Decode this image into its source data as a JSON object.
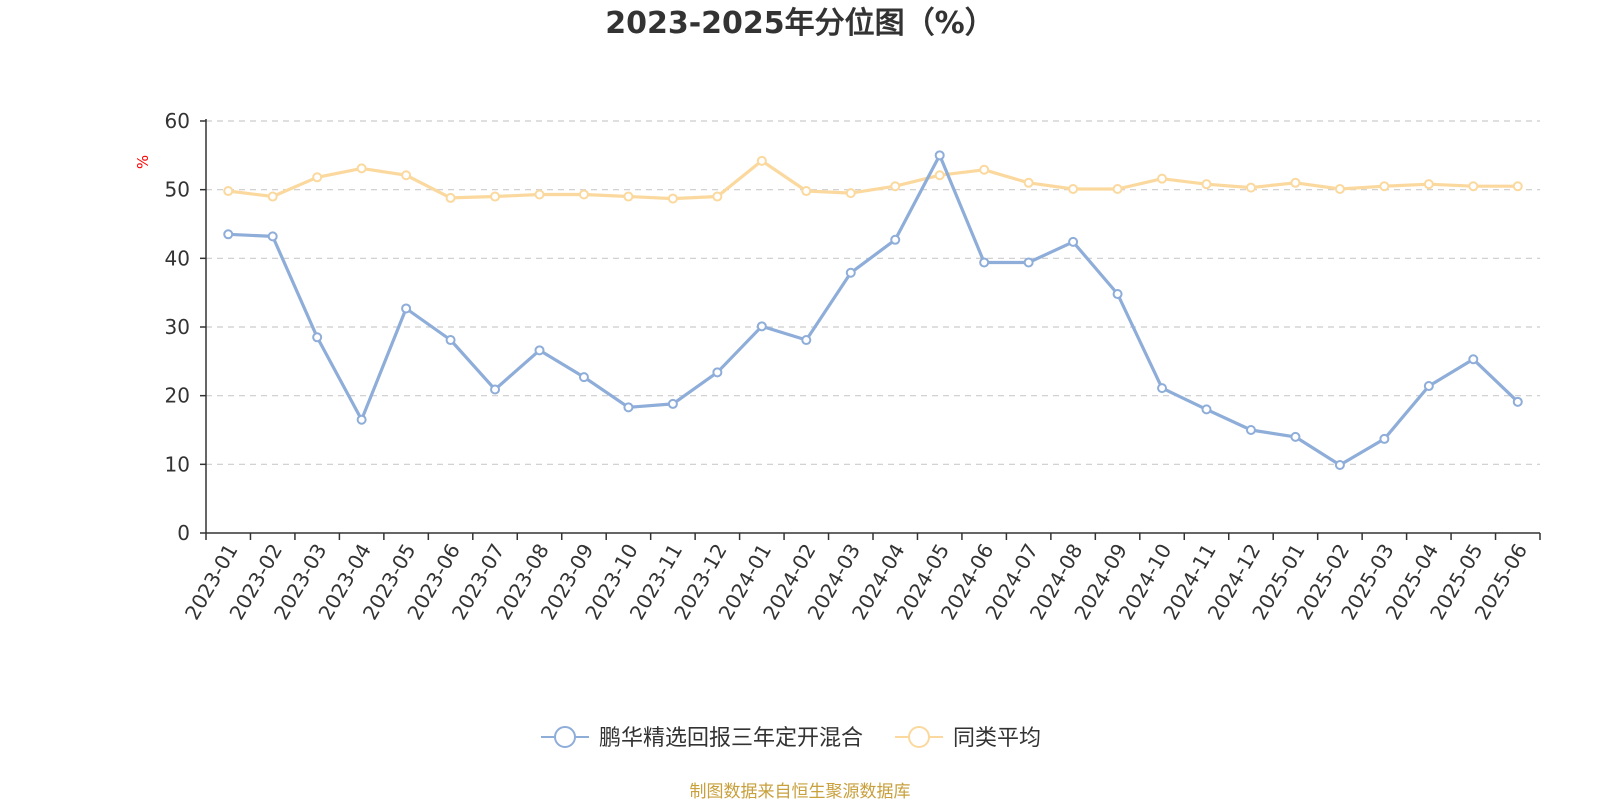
{
  "chart_data": {
    "type": "line",
    "title": "2023-2025年分位图（%）",
    "ylabel": "%",
    "ylim": [
      0,
      60
    ],
    "yticks": [
      0,
      10,
      20,
      30,
      40,
      50,
      60
    ],
    "grid": true,
    "legend_position": "bottom-center",
    "categories": [
      "2023-01",
      "2023-02",
      "2023-03",
      "2023-04",
      "2023-05",
      "2023-06",
      "2023-07",
      "2023-08",
      "2023-09",
      "2023-10",
      "2023-11",
      "2023-12",
      "2024-01",
      "2024-02",
      "2024-03",
      "2024-04",
      "2024-05",
      "2024-06",
      "2024-07",
      "2024-08",
      "2024-09",
      "2024-10",
      "2024-11",
      "2024-12",
      "2025-01",
      "2025-02",
      "2025-03",
      "2025-04",
      "2025-05",
      "2025-06"
    ],
    "series": [
      {
        "name": "鹏华精选回报三年定开混合",
        "color": "#8eadd9",
        "values": [
          43.5,
          43.2,
          28.5,
          16.5,
          32.7,
          28.1,
          20.9,
          26.6,
          22.7,
          18.3,
          18.8,
          23.4,
          30.1,
          28.1,
          37.9,
          42.7,
          55.0,
          39.4,
          39.4,
          42.4,
          34.8,
          21.1,
          18.0,
          15.0,
          14.0,
          9.9,
          13.7,
          21.4,
          25.3,
          19.1
        ]
      },
      {
        "name": "同类平均",
        "color": "#fbd99e",
        "values": [
          49.8,
          49.0,
          51.8,
          53.1,
          52.1,
          48.8,
          49.0,
          49.3,
          49.3,
          49.0,
          48.7,
          49.0,
          54.2,
          49.8,
          49.5,
          50.5,
          52.1,
          52.9,
          51.0,
          50.1,
          50.1,
          51.6,
          50.8,
          50.3,
          51.0,
          50.1,
          50.5,
          50.8,
          50.5,
          50.5
        ]
      }
    ],
    "source_note": "制图数据来自恒生聚源数据库",
    "colors": {
      "axis": "#333333",
      "grid": "#cccccc",
      "unit": "#ff0000",
      "source": "#c8a03c"
    }
  }
}
